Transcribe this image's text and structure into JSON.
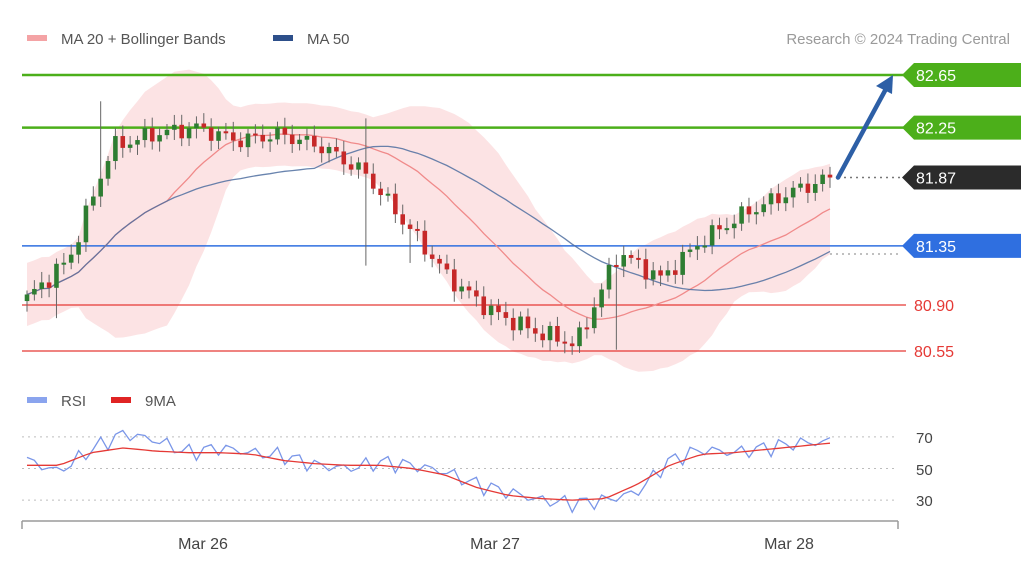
{
  "legend": {
    "ma20_label": "MA 20 + Bollinger Bands",
    "ma50_label": "MA 50",
    "rsi_label": "RSI",
    "rsi_ma_label": "9MA"
  },
  "credit": "Research © 2024 Trading Central",
  "colors": {
    "up": "#2e7d32",
    "down": "#c62828",
    "bollinger_fill": "#fbd9db",
    "ma20": "#f08a8a",
    "ma50": "#4f6ea0",
    "resistance": "#4caf1a",
    "pivot": "#2f6fe0",
    "support": "#e53935",
    "current": "#2b2b2b",
    "arrow": "#2d5fa6",
    "rsi": "#7a96e8",
    "rsi_ma": "#e53935"
  },
  "chart_data": [
    {
      "type": "candlestick",
      "title": "",
      "x_tick_labels": [
        "Mar 26",
        "Mar 27",
        "Mar 28"
      ],
      "ylim": [
        80.45,
        82.75
      ],
      "levels": [
        {
          "value": 82.65,
          "label": "82.65",
          "kind": "resistance"
        },
        {
          "value": 82.25,
          "label": "82.25",
          "kind": "resistance"
        },
        {
          "value": 81.87,
          "label": "81.87",
          "kind": "current"
        },
        {
          "value": 81.35,
          "label": "81.35",
          "kind": "pivot"
        },
        {
          "value": 80.9,
          "label": "80.90",
          "kind": "support"
        },
        {
          "value": 80.55,
          "label": "80.55",
          "kind": "support"
        }
      ],
      "target_arrow": {
        "from": 81.87,
        "to": 82.65
      },
      "key_closes": [
        80.95,
        81.25,
        82.1,
        82.2,
        82.25,
        82.15,
        82.2,
        82.1,
        81.9,
        81.5,
        81.1,
        80.85,
        80.7,
        80.6,
        81.3,
        81.1,
        81.4,
        81.6,
        81.75,
        81.87
      ],
      "series": [
        {
          "name": "MA 20 + Bollinger Bands"
        },
        {
          "name": "MA 50"
        }
      ]
    },
    {
      "type": "line",
      "title": "",
      "y_ticks": [
        70,
        50,
        30
      ],
      "ylim": [
        20,
        80
      ],
      "series": [
        {
          "name": "RSI",
          "key_values": [
            55,
            48,
            62,
            72,
            68,
            60,
            63,
            60,
            58,
            52,
            50,
            54,
            52,
            48,
            40,
            35,
            30,
            28,
            30,
            35,
            55,
            62,
            60,
            63,
            66,
            67
          ]
        },
        {
          "name": "9MA",
          "key_values": [
            52,
            52,
            60,
            63,
            61,
            60,
            60,
            59,
            55,
            53,
            52,
            52,
            50,
            46,
            38,
            33,
            31,
            30,
            31,
            40,
            52,
            59,
            60,
            62,
            64,
            66
          ]
        }
      ]
    }
  ]
}
